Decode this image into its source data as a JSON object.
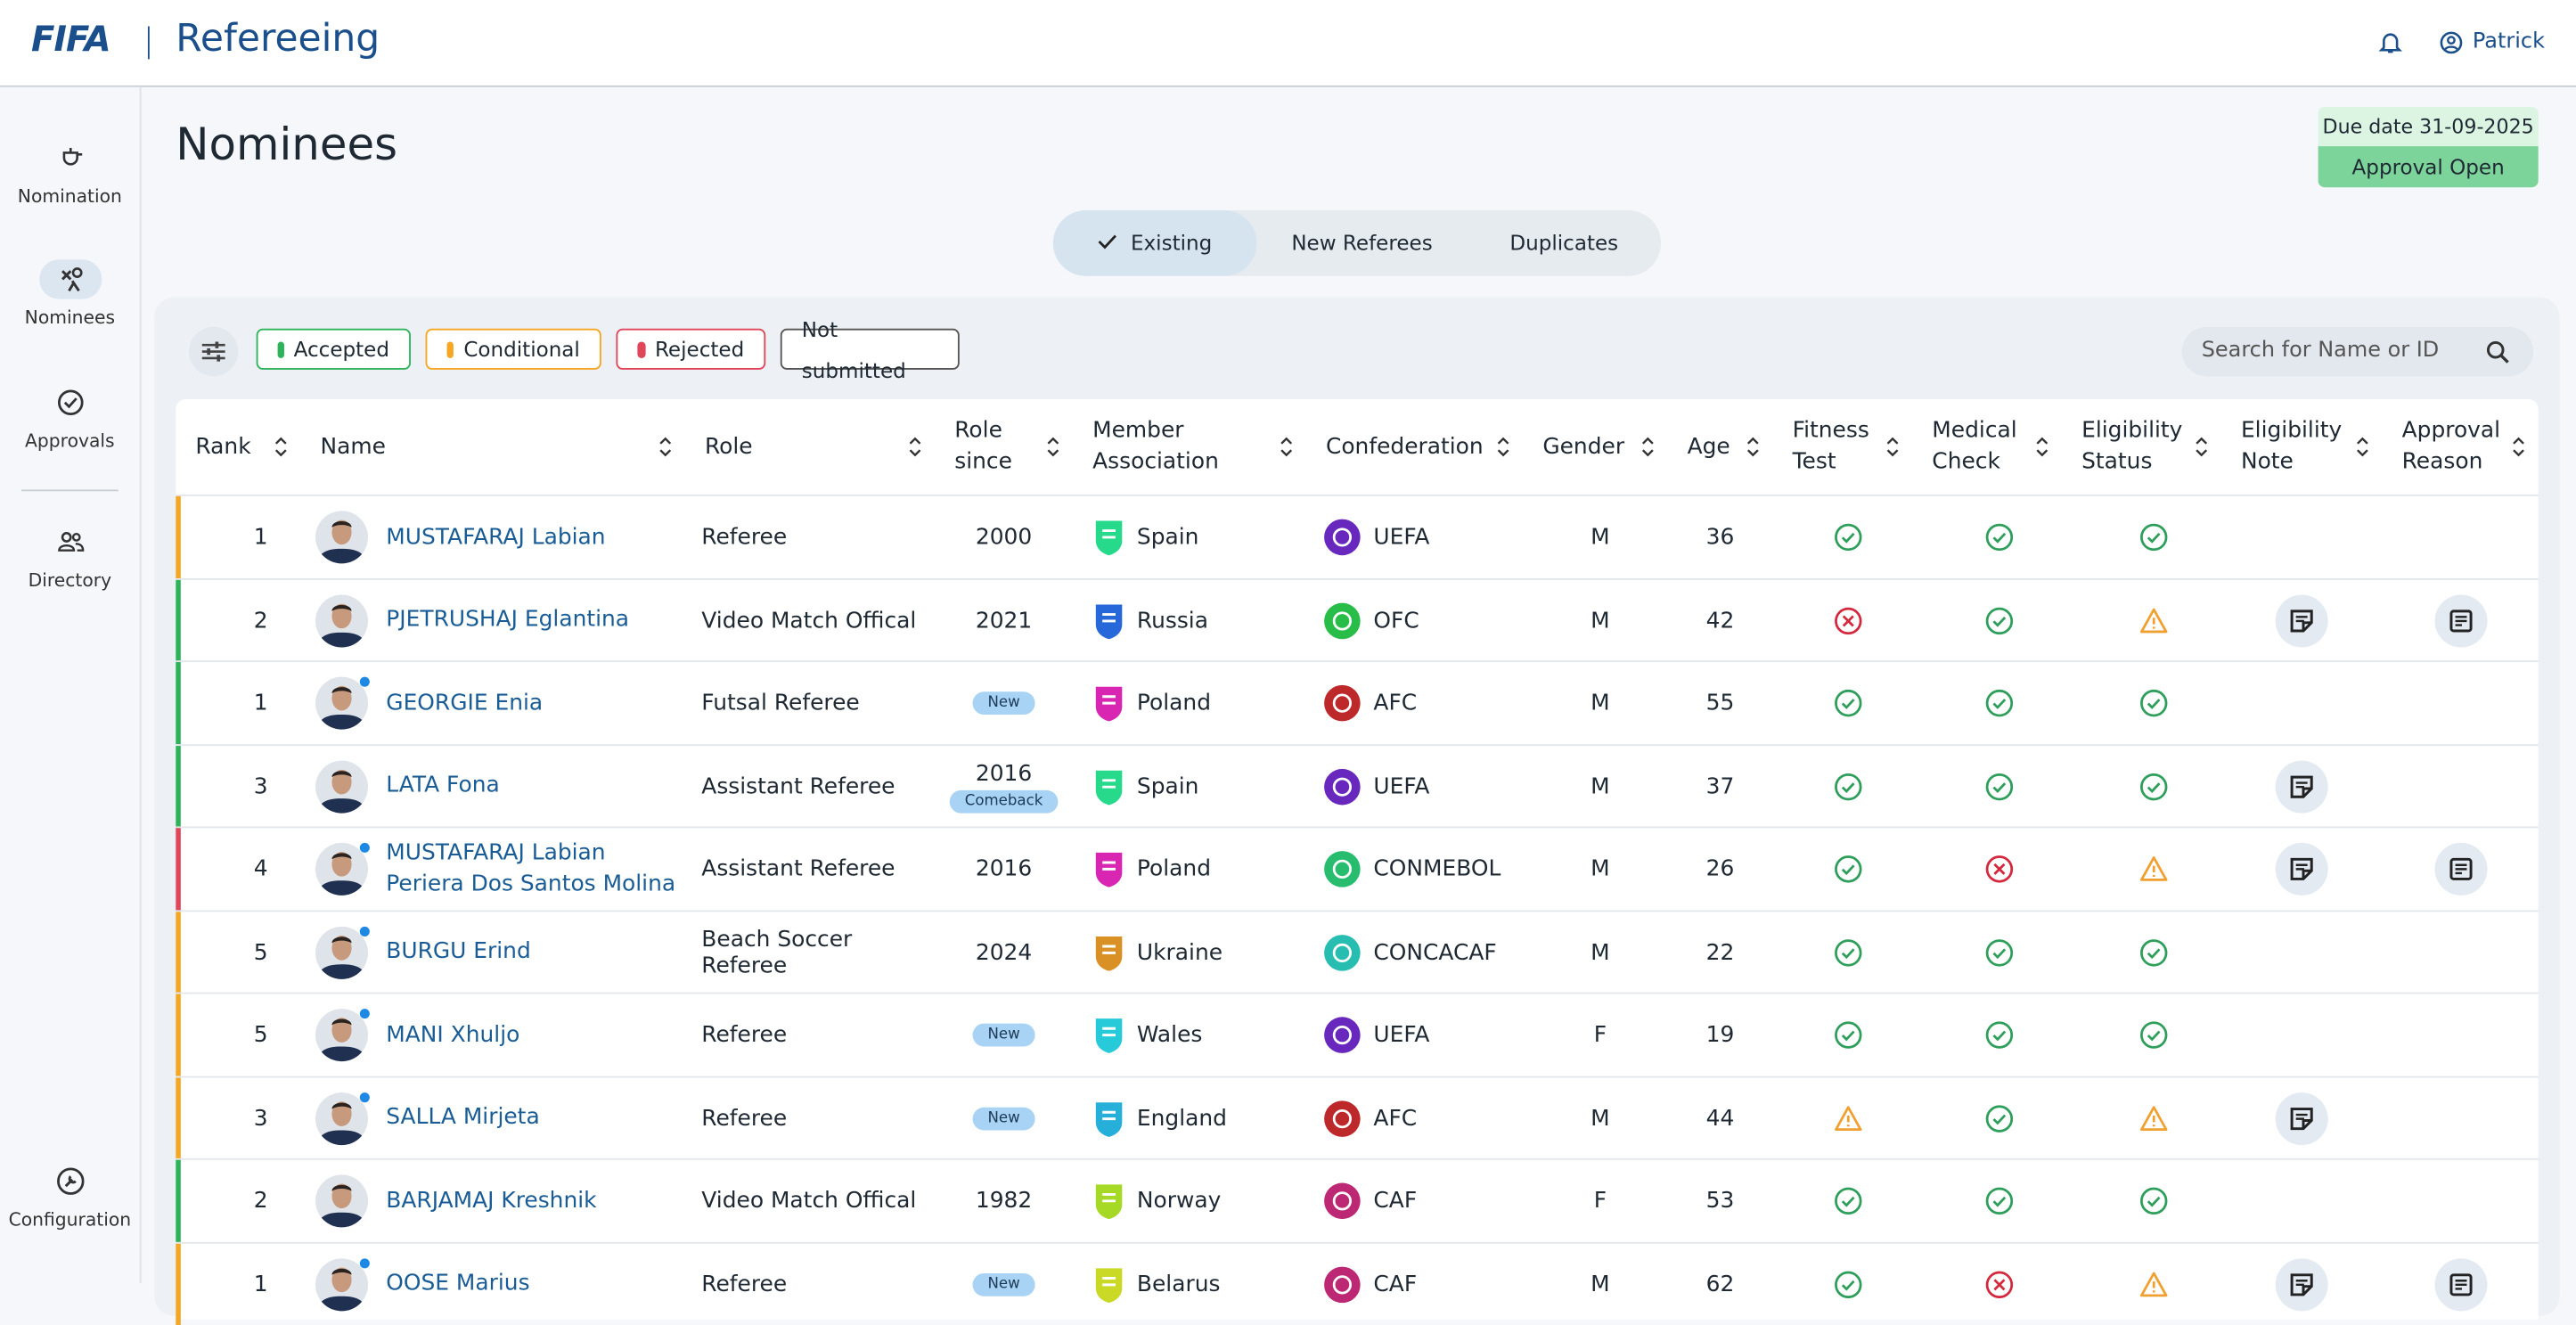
{
  "header": {
    "brand": "FIFA",
    "app": "Refereeing",
    "user": "Patrick"
  },
  "sidebar": {
    "items": [
      "Nomination",
      "Nominees",
      "Approvals",
      "Directory"
    ],
    "bottom": "Configuration",
    "active": 1
  },
  "page": {
    "title": "Nominees",
    "due": "Due date 31-09-2025",
    "status": "Approval Open"
  },
  "tabs": {
    "items": [
      "Existing",
      "New Referees",
      "Duplicates"
    ],
    "active": 0
  },
  "filters": {
    "items": [
      {
        "label": "Accepted",
        "color": "#2eb35a"
      },
      {
        "label": "Conditional",
        "color": "#f5a623"
      },
      {
        "label": "Rejected",
        "color": "#e0455a"
      },
      {
        "label": "Not submitted",
        "color": null
      }
    ],
    "search": "Search for Name or ID"
  },
  "table": {
    "columns": [
      "Rank",
      "Name",
      "Role",
      "Role since",
      "Member Association",
      "Confederation",
      "Gender",
      "Age",
      "Fitness Test",
      "Medical Check",
      "Eligibility Status",
      "Eligibility Note",
      "Approval Reason"
    ],
    "rows": [
      {
        "color": "#f5a623",
        "rank": 1,
        "name": "MUSTAFARAJ Labian",
        "dot": false,
        "role": "Referee",
        "since": 2000,
        "badge": null,
        "association": "Spain",
        "confederation": "UEFA",
        "gender": "M",
        "age": 36,
        "fitness": "check",
        "medical": "check",
        "eligibility": "check",
        "note": false,
        "reason": false
      },
      {
        "color": "#2eb35a",
        "rank": 2,
        "name": "PJETRUSHAJ Eglantina",
        "dot": false,
        "role": "Video Match Offical",
        "since": 2021,
        "badge": null,
        "association": "Russia",
        "confederation": "OFC",
        "gender": "M",
        "age": 42,
        "fitness": "cross",
        "medical": "check",
        "eligibility": "warn",
        "note": true,
        "reason": true
      },
      {
        "color": "#2eb35a",
        "rank": 1,
        "name": "GEORGIE Enia",
        "dot": true,
        "role": "Futsal Referee",
        "since": null,
        "badge": "New",
        "association": "Poland",
        "confederation": "AFC",
        "gender": "M",
        "age": 55,
        "fitness": "check",
        "medical": "check",
        "eligibility": "check",
        "note": false,
        "reason": false
      },
      {
        "color": "#2eb35a",
        "rank": 3,
        "name": "LATA Fona",
        "dot": false,
        "role": "Assistant Referee",
        "since": 2016,
        "badge": "Comeback",
        "association": "Spain",
        "confederation": "UEFA",
        "gender": "M",
        "age": 37,
        "fitness": "check",
        "medical": "check",
        "eligibility": "check",
        "note": true,
        "reason": false
      },
      {
        "color": "#e0455a",
        "rank": 4,
        "name": "MUSTAFARAJ Labian Periera Dos Santos Molina",
        "dot": true,
        "role": "Assistant Referee",
        "since": 2016,
        "badge": null,
        "association": "Poland",
        "confederation": "CONMEBOL",
        "gender": "M",
        "age": 26,
        "fitness": "check",
        "medical": "cross",
        "eligibility": "warn",
        "note": true,
        "reason": true
      },
      {
        "color": "#f5a623",
        "rank": 5,
        "name": "BURGU Erind",
        "dot": true,
        "role": "Beach Soccer Referee",
        "since": 2024,
        "badge": null,
        "association": "Ukraine",
        "confederation": "CONCACAF",
        "gender": "M",
        "age": 22,
        "fitness": "check",
        "medical": "check",
        "eligibility": "check",
        "note": false,
        "reason": false
      },
      {
        "color": "#f5a623",
        "rank": 5,
        "name": "MANI Xhuljo",
        "dot": true,
        "role": "Referee",
        "since": null,
        "badge": "New",
        "association": "Wales",
        "confederation": "UEFA",
        "gender": "F",
        "age": 19,
        "fitness": "check",
        "medical": "check",
        "eligibility": "check",
        "note": false,
        "reason": false
      },
      {
        "color": "#f5a623",
        "rank": 3,
        "name": "SALLA Mirjeta",
        "dot": true,
        "role": "Referee",
        "since": null,
        "badge": "New",
        "association": "England",
        "confederation": "AFC",
        "gender": "M",
        "age": 44,
        "fitness": "warn",
        "medical": "check",
        "eligibility": "warn",
        "note": true,
        "reason": false
      },
      {
        "color": "#2eb35a",
        "rank": 2,
        "name": "BARJAMAJ Kreshnik",
        "dot": false,
        "role": "Video Match Offical",
        "since": 1982,
        "badge": null,
        "association": "Norway",
        "confederation": "CAF",
        "gender": "F",
        "age": 53,
        "fitness": "check",
        "medical": "check",
        "eligibility": "check",
        "note": false,
        "reason": false
      },
      {
        "color": "#f5a623",
        "rank": 1,
        "name": "OOSE Marius",
        "dot": true,
        "role": "Referee",
        "since": null,
        "badge": "New",
        "association": "Belarus",
        "confederation": "CAF",
        "gender": "M",
        "age": 62,
        "fitness": "check",
        "medical": "cross",
        "eligibility": "warn",
        "note": true,
        "reason": true
      }
    ]
  }
}
